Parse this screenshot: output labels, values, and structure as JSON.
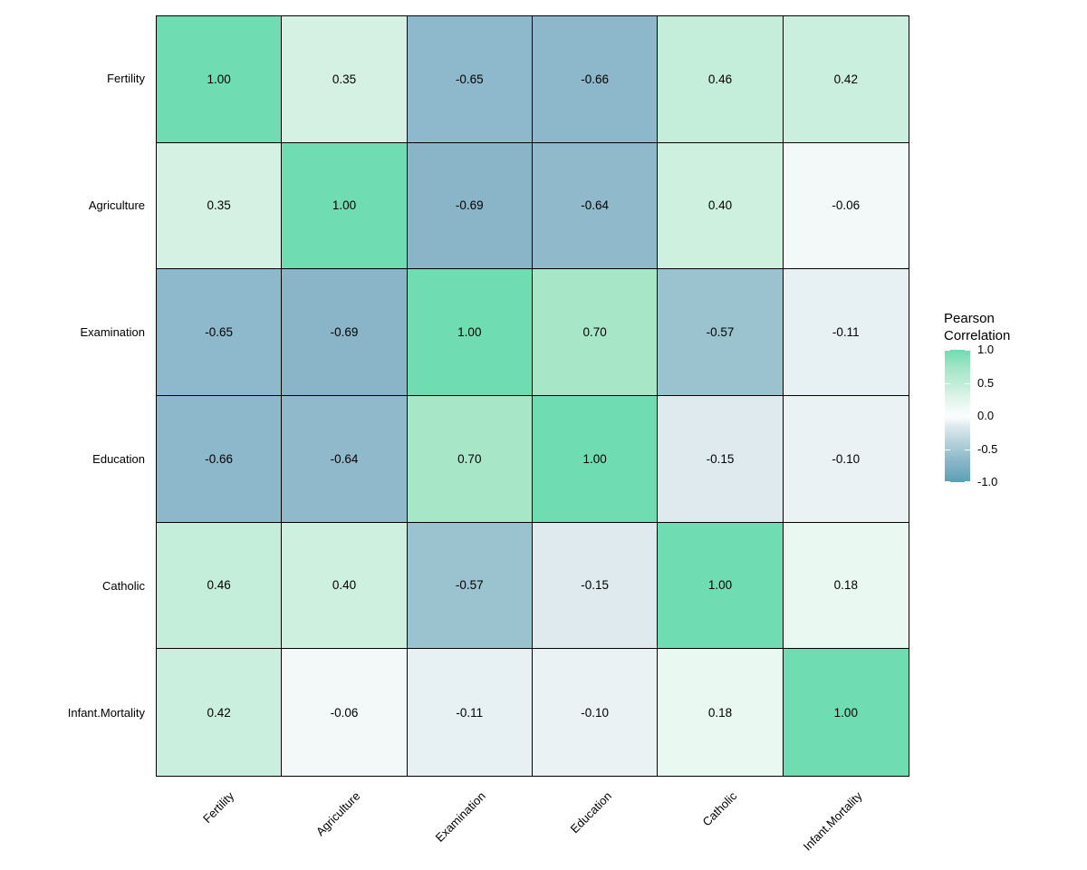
{
  "chart_data": {
    "type": "heatmap",
    "variables": [
      "Fertility",
      "Agriculture",
      "Examination",
      "Education",
      "Catholic",
      "Infant.Mortality"
    ],
    "matrix": [
      [
        1.0,
        0.35,
        -0.65,
        -0.66,
        0.46,
        0.42
      ],
      [
        0.35,
        1.0,
        -0.69,
        -0.64,
        0.4,
        -0.06
      ],
      [
        -0.65,
        -0.69,
        1.0,
        0.7,
        -0.57,
        -0.11
      ],
      [
        -0.66,
        -0.64,
        0.7,
        1.0,
        -0.15,
        -0.1
      ],
      [
        0.46,
        0.4,
        -0.57,
        -0.15,
        1.0,
        0.18
      ],
      [
        0.42,
        -0.06,
        -0.11,
        -0.1,
        0.18,
        1.0
      ]
    ],
    "value_decimals": 2,
    "axis_ranges": {
      "fill_min": -1.0,
      "fill_max": 1.0
    },
    "grid": "off",
    "tile_border_color": "#000000",
    "background_color": "#ffffff",
    "text_color": "#000000",
    "legend": {
      "title": "Pearson Correlation",
      "position": "right",
      "ticks": [
        "1.0",
        "0.5",
        "0.0",
        "-0.5",
        "-1.0"
      ],
      "tick_values": [
        1.0,
        0.5,
        0.0,
        -0.5,
        -1.0
      ]
    },
    "color_scale": {
      "stops": [
        {
          "value": -1.0,
          "color": "#59A0B5"
        },
        {
          "value": -0.69,
          "color": "#8AB5C9"
        },
        {
          "value": -0.65,
          "color": "#8EB8CB"
        },
        {
          "value": -0.57,
          "color": "#9AC2CF"
        },
        {
          "value": -0.15,
          "color": "#DEEAEE"
        },
        {
          "value": -0.06,
          "color": "#F3F8F9"
        },
        {
          "value": 0.0,
          "color": "#FBFDFD"
        },
        {
          "value": 0.18,
          "color": "#E9F8F0"
        },
        {
          "value": 0.35,
          "color": "#D5F1E4"
        },
        {
          "value": 0.46,
          "color": "#C4EEDA"
        },
        {
          "value": 0.7,
          "color": "#A8E6C8"
        },
        {
          "value": 1.0,
          "color": "#70DCB2"
        }
      ]
    }
  }
}
